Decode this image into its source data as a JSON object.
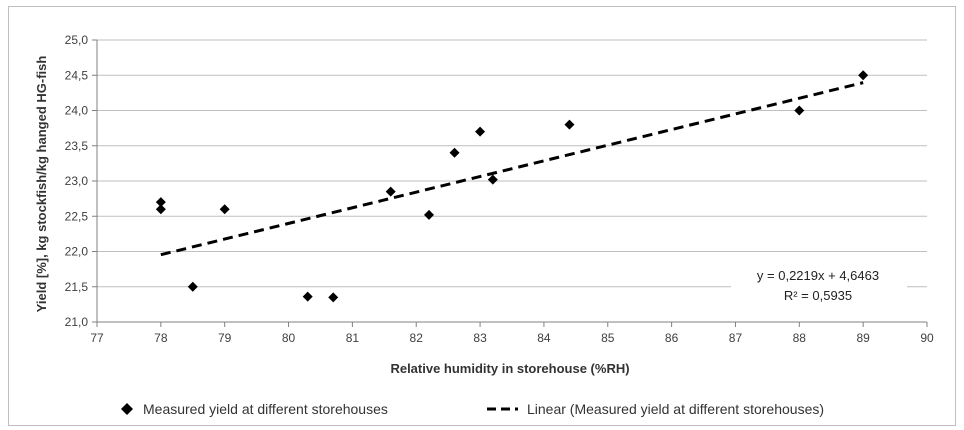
{
  "chart_data": {
    "type": "scatter",
    "title": "",
    "xlabel": "Relative humidity in storehouse (%RH)",
    "ylabel": "Yield [%],  kg stockfish/kg hanged HG-fish",
    "xlim": [
      77,
      90
    ],
    "ylim": [
      21.0,
      25.0
    ],
    "x_ticks": [
      "77",
      "78",
      "79",
      "80",
      "81",
      "82",
      "83",
      "84",
      "85",
      "86",
      "87",
      "88",
      "89",
      "90"
    ],
    "y_ticks": [
      "21,0",
      "21,5",
      "22,0",
      "22,5",
      "23,0",
      "23,5",
      "24,0",
      "24,5",
      "25,0"
    ],
    "grid": "horizontal",
    "legend_position": "bottom",
    "series": [
      {
        "name": "Measured yield at different storehouses",
        "marker": "diamond",
        "color": "#000000",
        "points": [
          {
            "x": 78.0,
            "y": 22.7
          },
          {
            "x": 78.0,
            "y": 22.6
          },
          {
            "x": 78.5,
            "y": 21.5
          },
          {
            "x": 79.0,
            "y": 22.6
          },
          {
            "x": 80.3,
            "y": 21.36
          },
          {
            "x": 80.7,
            "y": 21.35
          },
          {
            "x": 81.6,
            "y": 22.85
          },
          {
            "x": 82.2,
            "y": 22.52
          },
          {
            "x": 82.6,
            "y": 23.4
          },
          {
            "x": 83.0,
            "y": 23.7
          },
          {
            "x": 83.2,
            "y": 23.02
          },
          {
            "x": 84.4,
            "y": 23.8
          },
          {
            "x": 88.0,
            "y": 24.0
          },
          {
            "x": 89.0,
            "y": 24.5
          }
        ]
      }
    ],
    "trendline": {
      "name": "Linear (Measured yield at different storehouses)",
      "style": "dashed",
      "color": "#000000",
      "slope": 0.2219,
      "intercept": 4.6463,
      "x_range": [
        78,
        89
      ],
      "equation": "y = 0,2219x + 4,6463",
      "r_squared": "R² = 0,5935"
    }
  }
}
